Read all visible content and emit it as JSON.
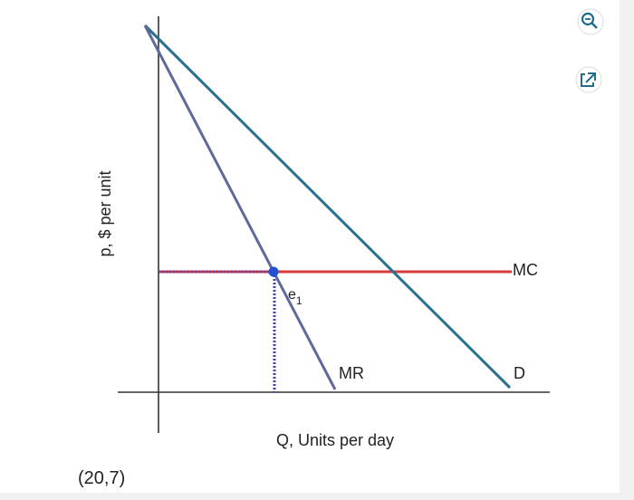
{
  "axes": {
    "y_label": "p, $ per unit",
    "x_label": "Q, Units per day"
  },
  "curves": [
    {
      "label": "MC"
    },
    {
      "label": "D"
    },
    {
      "label": "MR"
    }
  ],
  "point": {
    "label": "e",
    "subscript": "1"
  },
  "answer": "(20,7)"
}
